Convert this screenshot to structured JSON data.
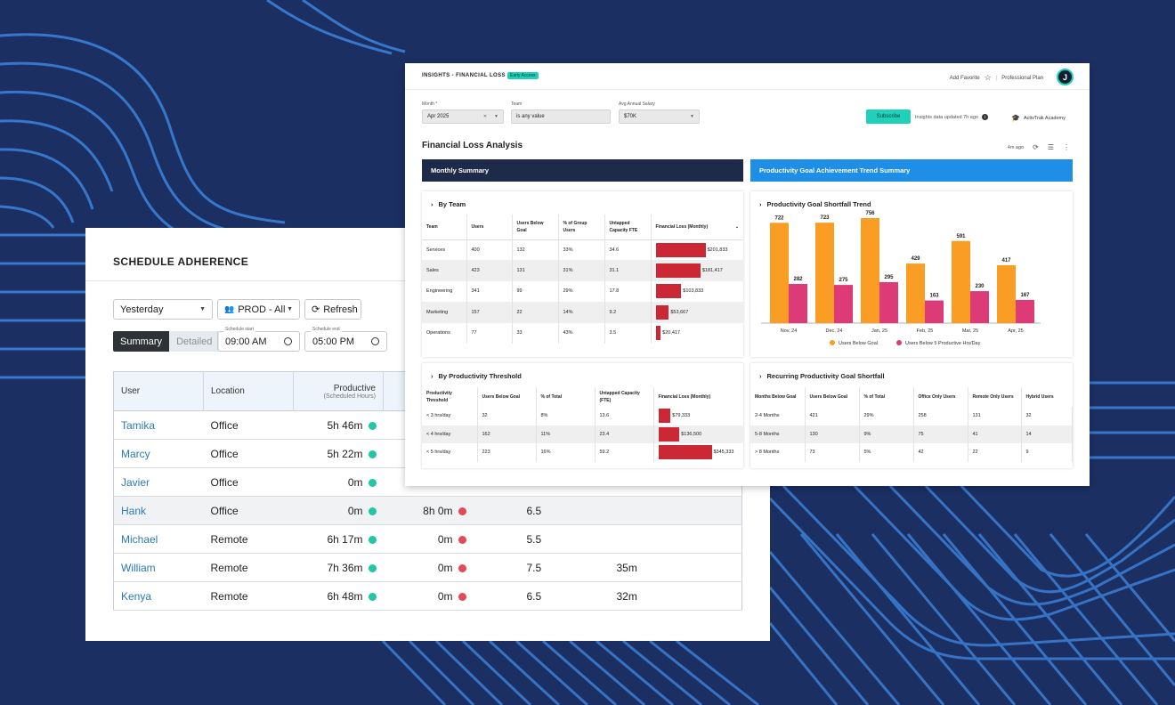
{
  "schedule": {
    "title": "SCHEDULE ADHERENCE",
    "filters": {
      "date": "Yesterday",
      "group": "PROD - All",
      "refresh": "Refresh",
      "view_summary": "Summary",
      "view_detailed": "Detailed",
      "start_label": "Schedule start",
      "start_value": "09:00 AM",
      "end_label": "Schedule end",
      "end_value": "05:00 PM"
    },
    "columns": {
      "user": "User",
      "location": "Location",
      "productive": "Productive",
      "productive_sub": "(Scheduled Hours)"
    },
    "rows": [
      {
        "user": "Tamika",
        "location": "Office",
        "productive": "5h 46m",
        "col4": "",
        "col5": "",
        "col6": ""
      },
      {
        "user": "Marcy",
        "location": "Office",
        "productive": "5h 22m",
        "col4": "",
        "col5": "",
        "col6": ""
      },
      {
        "user": "Javier",
        "location": "Office",
        "productive": "0m",
        "col4": "",
        "col5": "",
        "col6": ""
      },
      {
        "user": "Hank",
        "location": "Office",
        "productive": "0m",
        "col4": "8h 0m",
        "col5": "6.5",
        "col6": ""
      },
      {
        "user": "Michael",
        "location": "Remote",
        "productive": "6h 17m",
        "col4": "0m",
        "col5": "5.5",
        "col6": ""
      },
      {
        "user": "William",
        "location": "Remote",
        "productive": "7h 36m",
        "col4": "0m",
        "col5": "7.5",
        "col6": "35m"
      },
      {
        "user": "Kenya",
        "location": "Remote",
        "productive": "6h 48m",
        "col4": "0m",
        "col5": "6.5",
        "col6": "32m"
      }
    ]
  },
  "insights": {
    "title": "INSIGHTS - FINANCIAL LOSS",
    "badge": "Early Access",
    "add_favorite": "Add Favorite",
    "plan": "Professional Plan",
    "avatar": "J",
    "filters": {
      "month_label": "Month *",
      "month_value": "Apr 2025",
      "team_label": "Team",
      "team_value": "is any value",
      "salary_label": "Avg Annual Salary",
      "salary_value": "$70K"
    },
    "subscribe": "Subscribe",
    "updated": "Insights data updated 7h ago",
    "academy": "ActivTrak Academy",
    "section_title": "Financial Loss Analysis",
    "ago": "4m ago",
    "band_left": "Monthly Summary",
    "band_right": "Productivity Goal Achievement Trend Summary",
    "colors": {
      "navy": "#1e2a4a",
      "blue": "#1f8ee6",
      "bar_red": "#cb2734",
      "orange": "#f99d25",
      "pink": "#dc3b77"
    },
    "by_team": {
      "title": "By Team",
      "headers": [
        "Team",
        "Users",
        "Users Below Goal",
        "% of Group Users",
        "Untapped Capacity FTE",
        "Financial Loss (Monthly)"
      ],
      "rows": [
        {
          "team": "Services",
          "users": "400",
          "below": "132",
          "pct": "33%",
          "fte": "34.6",
          "loss": "$201,833",
          "loss_value": 201833
        },
        {
          "team": "Sales",
          "users": "423",
          "below": "131",
          "pct": "31%",
          "fte": "31.1",
          "loss": "$181,417",
          "loss_value": 181417
        },
        {
          "team": "Engineering",
          "users": "341",
          "below": "99",
          "pct": "29%",
          "fte": "17.8",
          "loss": "$103,833",
          "loss_value": 103833
        },
        {
          "team": "Marketing",
          "users": "157",
          "below": "22",
          "pct": "14%",
          "fte": "9.2",
          "loss": "$53,667",
          "loss_value": 53667
        },
        {
          "team": "Operations",
          "users": "77",
          "below": "33",
          "pct": "43%",
          "fte": "3.5",
          "loss": "$20,417",
          "loss_value": 20417
        }
      ]
    },
    "by_threshold": {
      "title": "By Productivity Threshold",
      "headers": [
        "Productivity Threshold",
        "Users Below Goal",
        "% of Total",
        "Untapped Capacity (FTE)",
        "Financial Loss (Monthly)"
      ],
      "rows": [
        {
          "threshold": "< 3 hrs/day",
          "below": "32",
          "pct": "8%",
          "fte": "13.6",
          "loss": "$79,333",
          "loss_value": 79333
        },
        {
          "threshold": "< 4 hrs/day",
          "below": "162",
          "pct": "11%",
          "fte": "23.4",
          "loss": "$136,500",
          "loss_value": 136500
        },
        {
          "threshold": "< 5 hrs/day",
          "below": "223",
          "pct": "16%",
          "fte": "59.2",
          "loss": "$345,333",
          "loss_value": 345333
        }
      ]
    },
    "recurring": {
      "title": "Recurring Productivity Goal Shortfall",
      "headers": [
        "Months Below Goal",
        "Users Below Goal",
        "% of Total",
        "Office Only Users",
        "Remote Only Users",
        "Hybrid Users"
      ],
      "rows": [
        {
          "months": "2-4 Months",
          "below": "421",
          "pct": "29%",
          "office": "258",
          "remote": "131",
          "hybrid": "32"
        },
        {
          "months": "5-8 Months",
          "below": "130",
          "pct": "9%",
          "office": "75",
          "remote": "41",
          "hybrid": "14"
        },
        {
          "months": "> 8 Months",
          "below": "73",
          "pct": "5%",
          "office": "42",
          "remote": "22",
          "hybrid": "9"
        }
      ]
    }
  },
  "chart_data": {
    "type": "bar",
    "title": "Productivity Goal Shortfall Trend",
    "categories": [
      "Nov, 24",
      "Dec, 24",
      "Jan, 25",
      "Feb, 25",
      "Mar, 25",
      "Apr, 25"
    ],
    "series": [
      {
        "name": "Users Below Goal",
        "values": [
          722,
          723,
          756,
          429,
          591,
          417
        ],
        "color": "#f99d25"
      },
      {
        "name": "Users Below 5 Productive Hrs/Day",
        "values": [
          282,
          275,
          295,
          163,
          230,
          167
        ],
        "color": "#dc3b77"
      }
    ],
    "ylim": [
      0,
      780
    ],
    "legend": "bottom"
  }
}
